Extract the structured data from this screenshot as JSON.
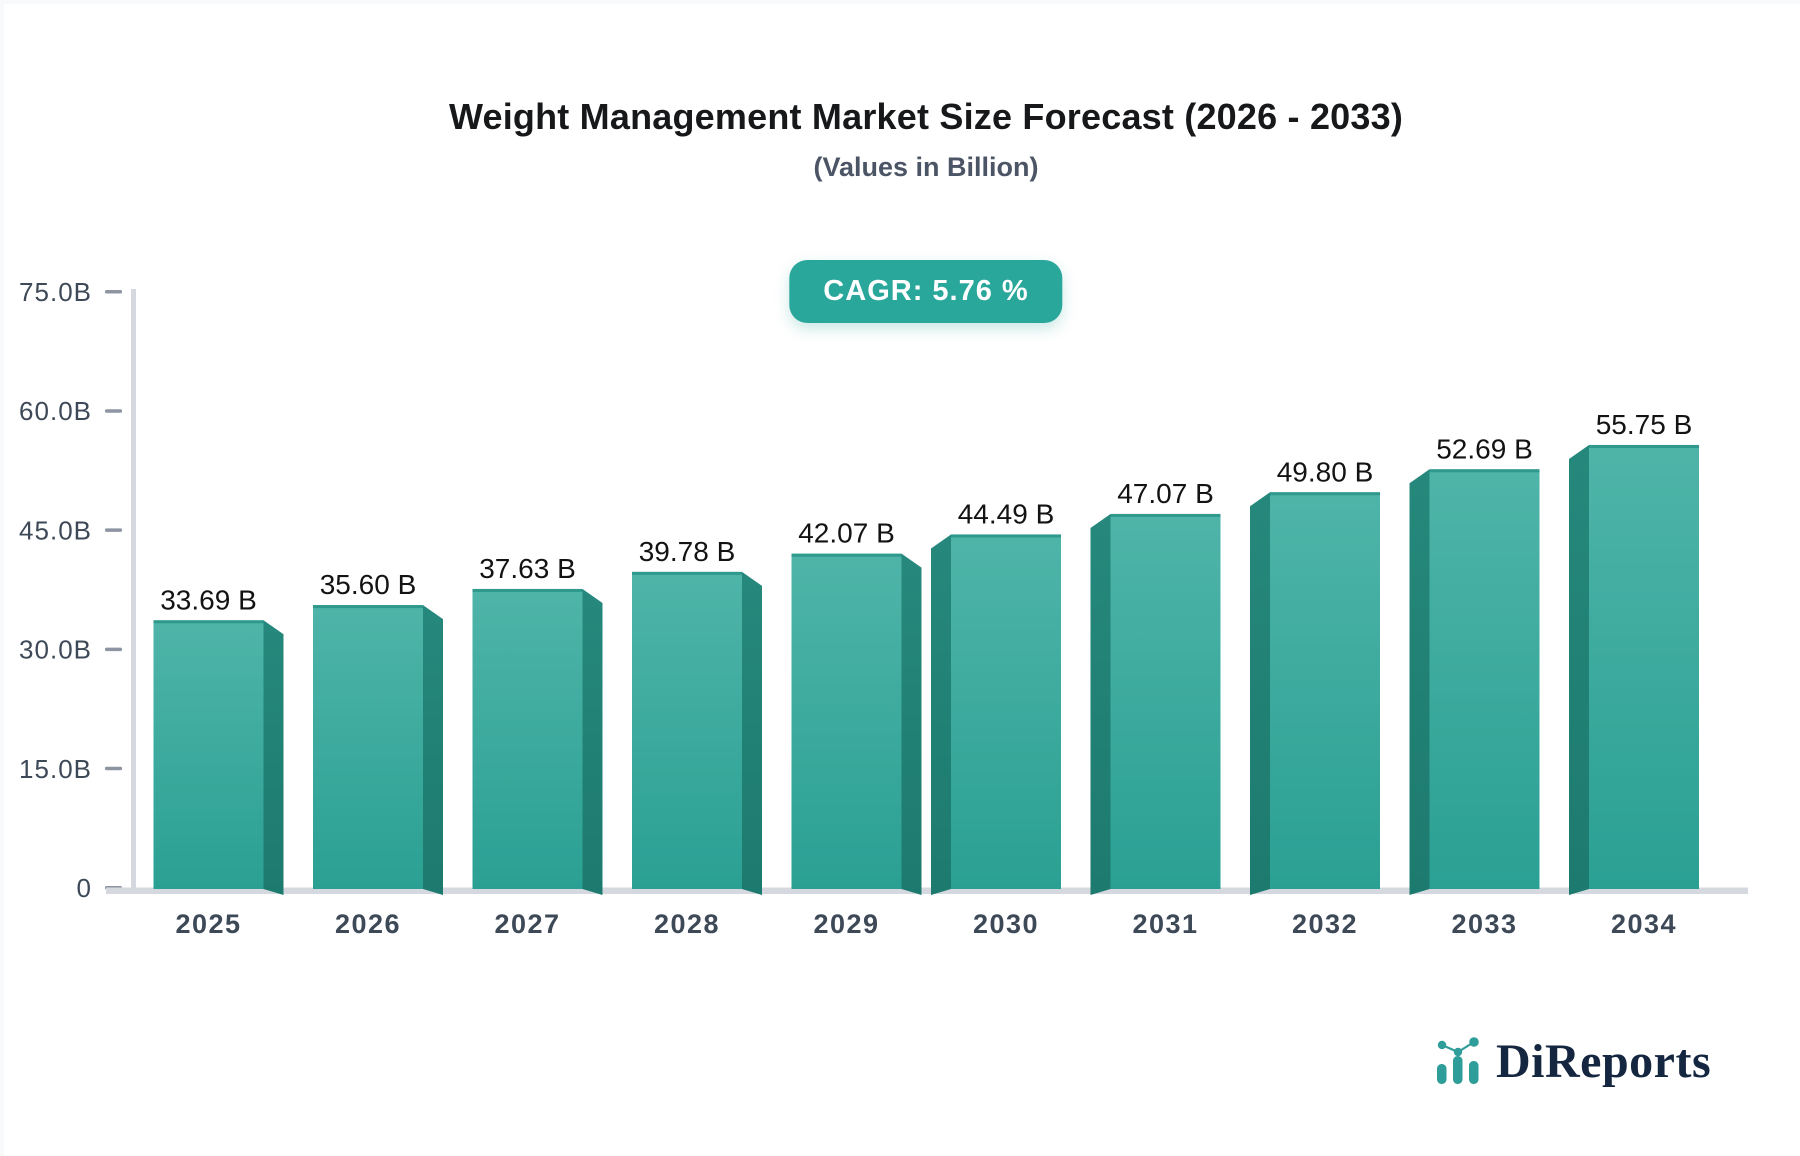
{
  "header": {
    "title": "Weight Management Market Size Forecast (2026 - 2033)",
    "subtitle": "(Values in Billion)"
  },
  "badge": {
    "label": "CAGR: 5.76 %"
  },
  "chart_data": {
    "type": "bar",
    "title": "Weight Management Market Size Forecast (2026 - 2033)",
    "subtitle": "(Values in Billion)",
    "categories": [
      "2025",
      "2026",
      "2027",
      "2028",
      "2029",
      "2030",
      "2031",
      "2032",
      "2033",
      "2034"
    ],
    "values": [
      33.69,
      35.6,
      37.63,
      39.78,
      42.07,
      44.49,
      47.07,
      49.8,
      52.69,
      55.75
    ],
    "value_labels": [
      "33.69 B",
      "35.60 B",
      "37.63 B",
      "39.78 B",
      "42.07 B",
      "44.49 B",
      "47.07 B",
      "49.80 B",
      "52.69 B",
      "55.75 B"
    ],
    "xlabel": "",
    "ylabel": "",
    "ylim": [
      0,
      75
    ],
    "yticks": [
      0,
      15,
      30,
      45,
      60,
      75
    ],
    "ytick_labels": [
      "0",
      "15.0B",
      "30.0B",
      "45.0B",
      "60.0B",
      "75.0B"
    ],
    "grid": false,
    "legend": false,
    "annotation": "CAGR: 5.76 %",
    "bar_style": "3d-extruded, side facing away from chart center"
  },
  "colors": {
    "bar_top": "#4fb4a9",
    "bar_bottom": "#2aa093",
    "bar_top_edge": "#2f998c",
    "bar_side_top": "#26887c",
    "bar_side_bottom": "#1d7a6e",
    "badge_bg": "#2aa79b",
    "badge_text": "#ffffff",
    "axis_line": "#d5d8de",
    "tick_dash": "#8d95a2",
    "axis_label": "#3e4958",
    "value_label": "#131313",
    "title_text": "#17181a",
    "subtitle_text": "#4c5565",
    "logo_navy": "#142640",
    "logo_teal": "#2f9d99"
  },
  "logo": {
    "text": "DiReports",
    "icon": "bar-chart-logo-icon"
  }
}
